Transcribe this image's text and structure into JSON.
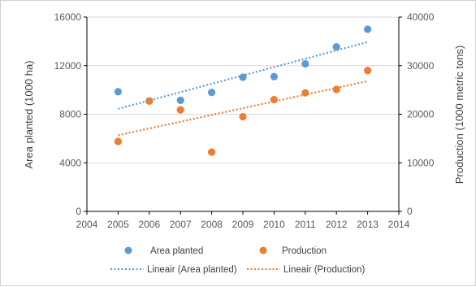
{
  "chart_data": {
    "type": "scatter",
    "x": [
      2005,
      2006,
      2007,
      2008,
      2009,
      2010,
      2011,
      2012,
      2013
    ],
    "xlim": [
      2004,
      2014
    ],
    "x_ticks": [
      "2004",
      "2005",
      "2006",
      "2007",
      "2008",
      "2009",
      "2010",
      "2011",
      "2012",
      "2013",
      "2014"
    ],
    "y_left": {
      "label": "Area planted  (1000 ha)",
      "lim": [
        0,
        16000
      ],
      "ticks": [
        "0",
        "4000",
        "8000",
        "12000",
        "16000"
      ]
    },
    "y_right": {
      "label": "Production  (1000 metric tons)",
      "lim": [
        0,
        40000
      ],
      "ticks": [
        "0",
        "10000",
        "20000",
        "30000",
        "40000"
      ]
    },
    "series": [
      {
        "name": "Area planted",
        "axis": "left",
        "color": "#5b9bd5",
        "values": [
          9850,
          9100,
          9150,
          9800,
          11050,
          11100,
          12150,
          13550,
          15000
        ]
      },
      {
        "name": "Production",
        "axis": "right",
        "color": "#ed7d31",
        "values": [
          14400,
          22700,
          20900,
          12200,
          19500,
          23000,
          24400,
          25100,
          29000
        ]
      }
    ],
    "trendlines": [
      {
        "name": "Lineair (Area planted)",
        "axis": "left",
        "color": "#5b9bd5",
        "style": "dotted"
      },
      {
        "name": "Lineair (Production)",
        "axis": "right",
        "color": "#ed7d31",
        "style": "dotted"
      }
    ],
    "grid": true,
    "legend_position": "bottom"
  }
}
